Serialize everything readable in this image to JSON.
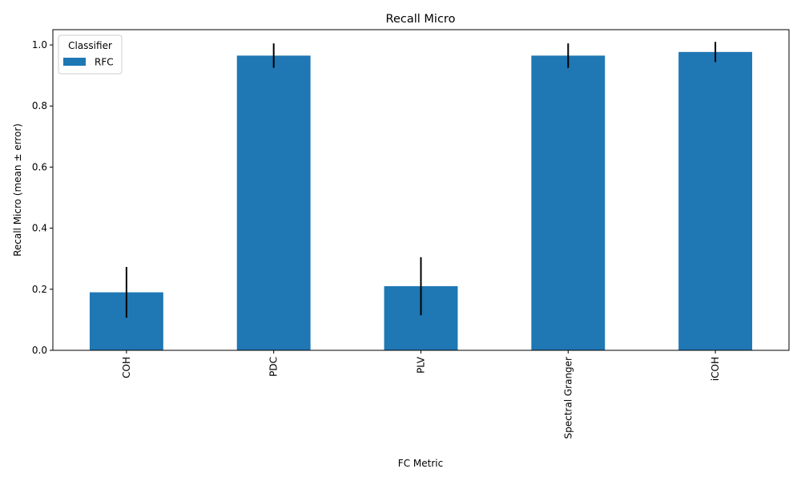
{
  "chart_data": {
    "type": "bar",
    "title": "Recall Micro",
    "xlabel": "FC Metric",
    "ylabel": "Recall Micro (mean ± error)",
    "categories": [
      "COH",
      "PDC",
      "PLV",
      "Spectral Granger",
      "iCOH"
    ],
    "series": [
      {
        "name": "RFC",
        "values": [
          0.19,
          0.965,
          0.21,
          0.965,
          0.977
        ],
        "errors": [
          0.083,
          0.04,
          0.095,
          0.04,
          0.033
        ]
      }
    ],
    "ylim": [
      0,
      1.05
    ],
    "yticks": [
      0.0,
      0.2,
      0.4,
      0.6,
      0.8,
      1.0
    ],
    "ytick_labels": [
      "0.0",
      "0.2",
      "0.4",
      "0.6",
      "0.8",
      "1.0"
    ],
    "grid": false,
    "legend": {
      "title": "Classifier",
      "placement": "top-left"
    },
    "colors": {
      "bar": "#1f77b4",
      "error": "#000000"
    }
  }
}
